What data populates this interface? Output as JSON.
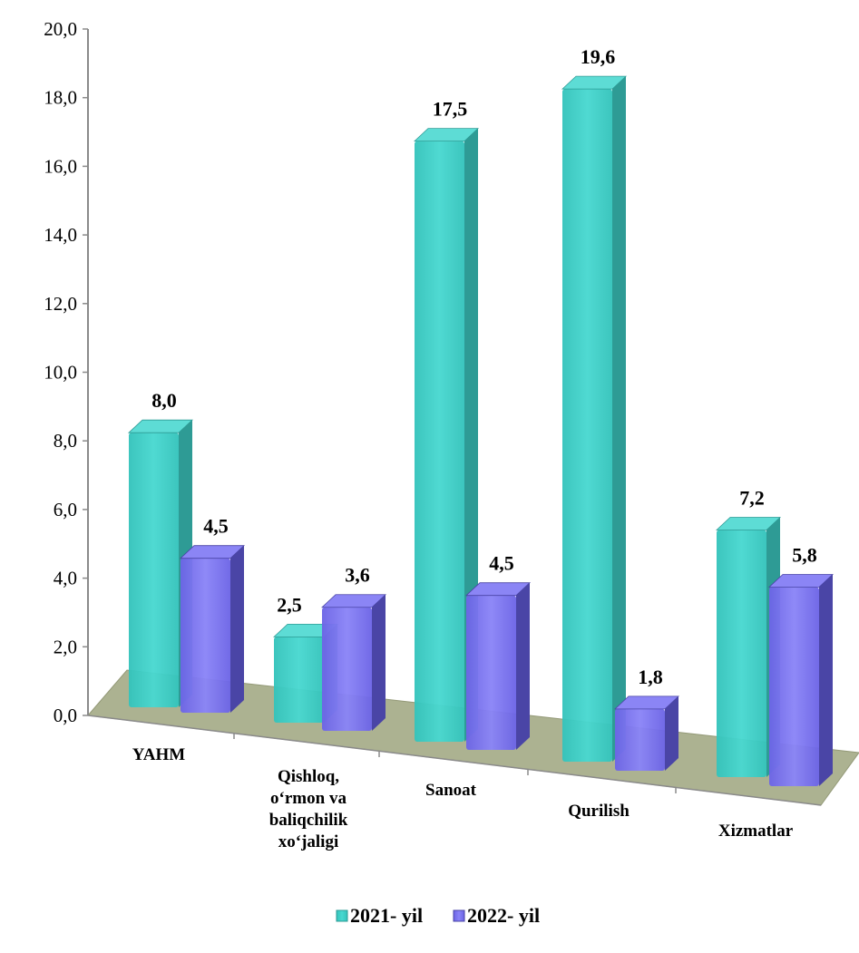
{
  "chart_data": {
    "type": "bar",
    "categories": [
      [
        "YAHM"
      ],
      [
        "Qishloq,",
        "o‘rmon va",
        "baliqchilik",
        "xo‘jaligi"
      ],
      [
        "Sanoat"
      ],
      [
        "Qurilish"
      ],
      [
        "Xizmatlar"
      ]
    ],
    "series": [
      {
        "name": "2021- yil",
        "values": [
          8.0,
          2.5,
          17.5,
          19.6,
          7.2
        ],
        "labels": [
          "8,0",
          "2,5",
          "17,5",
          "19,6",
          "7,2"
        ]
      },
      {
        "name": "2022- yil",
        "values": [
          4.5,
          3.6,
          4.5,
          1.8,
          5.8
        ],
        "labels": [
          "4,5",
          "3,6",
          "4,5",
          "1,8",
          "5,8"
        ]
      }
    ],
    "y_ticks": [
      "0,0",
      "2,0",
      "4,0",
      "6,0",
      "8,0",
      "10,0",
      "12,0",
      "14,0",
      "16,0",
      "18,0",
      "20,0"
    ],
    "ylim": [
      0,
      20
    ],
    "legend_position": "bottom",
    "grid": false,
    "colors": {
      "series_2021": "#3ECFC7",
      "series_2022": "#7B74F0",
      "floor": "#A8AE8C"
    }
  }
}
